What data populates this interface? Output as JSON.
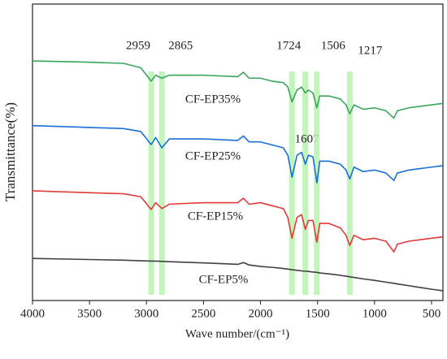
{
  "chart_data": {
    "type": "line",
    "xlabel": "Wave number/(cm⁻¹)",
    "ylabel": "Transmittance(%)",
    "xlim": [
      4000,
      400
    ],
    "xticks": [
      4000,
      3500,
      3000,
      2500,
      2000,
      1500,
      1000,
      500
    ],
    "ylim": [
      0,
      100
    ],
    "bands": [
      2959,
      2865,
      1724,
      1607,
      1506,
      1217
    ],
    "band_color": "#b8f2b0",
    "x": [
      4000,
      3600,
      3200,
      3050,
      2959,
      2920,
      2865,
      2800,
      2500,
      2200,
      2150,
      2100,
      2000,
      1900,
      1800,
      1760,
      1724,
      1680,
      1640,
      1607,
      1580,
      1540,
      1506,
      1480,
      1400,
      1300,
      1250,
      1217,
      1180,
      1100,
      1000,
      900,
      830,
      800,
      700,
      600,
      500,
      400
    ],
    "series": [
      {
        "name": "CF-EP35%",
        "color": "#3aa55b",
        "values": [
          80.8,
          80.5,
          80,
          78.5,
          74,
          76,
          75,
          76,
          76,
          75.5,
          77,
          75,
          75,
          74,
          73.5,
          72,
          67,
          71,
          72,
          70,
          71,
          70,
          65,
          69,
          69,
          68,
          66,
          63,
          66,
          64.5,
          65,
          64,
          61.5,
          64,
          65,
          65.5,
          66,
          66.5
        ]
      },
      {
        "name": "CF-EP25%",
        "color": "#1a6fd6",
        "values": [
          59,
          58.5,
          58,
          57,
          52.6,
          55,
          51.5,
          54.5,
          54.5,
          54,
          55.5,
          53.5,
          53.5,
          52.5,
          51.5,
          49,
          41.6,
          49,
          50,
          46,
          49,
          48.5,
          39.7,
          47,
          47,
          46,
          44,
          41,
          45,
          43.5,
          44,
          43,
          40.5,
          43,
          44,
          44.5,
          45,
          45.5
        ]
      },
      {
        "name": "CF-EP15%",
        "color": "#e03a3a",
        "values": [
          37,
          36.5,
          36,
          35,
          30.7,
          33,
          31,
          32.5,
          33,
          33,
          34.5,
          32.5,
          33,
          32,
          31,
          28,
          21,
          28,
          29,
          24,
          27,
          27,
          19.7,
          26,
          26,
          24.5,
          22,
          18.6,
          22,
          20.5,
          21,
          20,
          16.4,
          19,
          20,
          20.5,
          21,
          21.5
        ]
      },
      {
        "name": "CF-EP5%",
        "color": "#404040",
        "values": [
          14.2,
          13.9,
          13.6,
          13.4,
          13.3,
          13.3,
          13.2,
          13.1,
          12.7,
          12.2,
          12.8,
          12,
          11.5,
          11.2,
          10.8,
          10.6,
          10.4,
          10.2,
          10,
          9.9,
          9.8,
          9.6,
          9.5,
          9.3,
          9,
          8.5,
          8.2,
          8,
          7.8,
          7.3,
          6.8,
          6.2,
          5.8,
          5.6,
          5,
          4.4,
          3.8,
          3.3
        ]
      }
    ]
  }
}
